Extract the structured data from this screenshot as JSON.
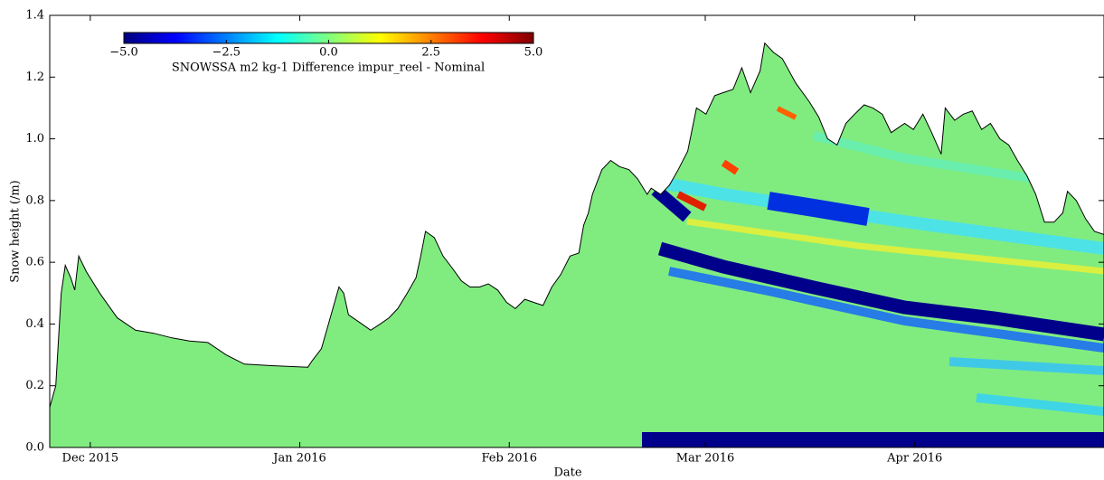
{
  "chart_data": {
    "type": "area",
    "xlabel": "Date",
    "ylabel": "Snow height (/m)",
    "color": "#80ec80",
    "line_color": "#000000",
    "xlim": [
      0,
      156
    ],
    "xticks": [
      {
        "value": 6,
        "label": "Dec 2015"
      },
      {
        "value": 37,
        "label": "Jan 2016"
      },
      {
        "value": 68,
        "label": "Feb 2016"
      },
      {
        "value": 97,
        "label": "Mar 2016"
      },
      {
        "value": 128,
        "label": "Apr 2016"
      }
    ],
    "ylim": [
      0,
      1.4
    ],
    "yticks": [
      {
        "value": 0,
        "label": "0.0"
      },
      0.2,
      0.4,
      0.6,
      0.8,
      {
        "value": 1,
        "label": "1.0"
      },
      1.2,
      1.4
    ],
    "x": [
      0,
      0.9,
      1.7,
      2.3,
      3.1,
      3.7,
      4.3,
      5.4,
      7.4,
      10.0,
      12.7,
      15.4,
      18.1,
      20.7,
      23.4,
      26.1,
      28.8,
      32.8,
      38.2,
      38.8,
      40.2,
      41.5,
      42.8,
      43.5,
      44.2,
      46.2,
      47.5,
      48.9,
      50.2,
      51.5,
      52.9,
      54.2,
      54.9,
      55.6,
      56.9,
      58.2,
      59.6,
      60.9,
      62.2,
      63.6,
      64.9,
      66.3,
      67.6,
      68.9,
      70.3,
      71.6,
      73.0,
      74.3,
      75.6,
      77.0,
      78.3,
      79.0,
      79.7,
      80.3,
      81.7,
      83.0,
      84.3,
      85.7,
      87.0,
      88.4,
      89.0,
      90.4,
      91.7,
      93.0,
      94.4,
      95.7,
      97.1,
      98.4,
      99.7,
      101.1,
      102.4,
      103.7,
      105.1,
      105.8,
      107.1,
      108.4,
      110.4,
      112.4,
      113.8,
      115.1,
      116.5,
      117.8,
      119.1,
      120.5,
      121.8,
      123.2,
      124.5,
      126.5,
      127.8,
      129.2,
      130.5,
      131.9,
      132.5,
      133.9,
      135.2,
      136.5,
      137.9,
      139.2,
      140.6,
      141.9,
      143.2,
      144.6,
      145.9,
      147.2,
      148.6,
      149.9,
      150.6,
      151.9,
      153.3,
      154.6,
      156
    ],
    "values": [
      0.13,
      0.2,
      0.5,
      0.59,
      0.55,
      0.51,
      0.62,
      0.57,
      0.5,
      0.42,
      0.38,
      0.37,
      0.355,
      0.345,
      0.34,
      0.3,
      0.27,
      0.265,
      0.26,
      0.28,
      0.32,
      0.42,
      0.52,
      0.5,
      0.43,
      0.4,
      0.38,
      0.4,
      0.42,
      0.45,
      0.5,
      0.55,
      0.62,
      0.7,
      0.68,
      0.62,
      0.58,
      0.54,
      0.52,
      0.52,
      0.53,
      0.51,
      0.47,
      0.45,
      0.48,
      0.47,
      0.46,
      0.52,
      0.56,
      0.62,
      0.63,
      0.72,
      0.76,
      0.82,
      0.9,
      0.93,
      0.91,
      0.9,
      0.87,
      0.82,
      0.84,
      0.82,
      0.85,
      0.9,
      0.96,
      1.1,
      1.08,
      1.14,
      1.15,
      1.16,
      1.23,
      1.15,
      1.22,
      1.31,
      1.28,
      1.26,
      1.18,
      1.12,
      1.07,
      1.0,
      0.98,
      1.05,
      1.08,
      1.11,
      1.1,
      1.08,
      1.02,
      1.05,
      1.03,
      1.08,
      1.02,
      0.95,
      1.1,
      1.06,
      1.08,
      1.09,
      1.03,
      1.05,
      1.0,
      0.98,
      0.93,
      0.88,
      0.82,
      0.73,
      0.73,
      0.76,
      0.83,
      0.8,
      0.74,
      0.7,
      0.69
    ],
    "colorbar": {
      "label": "SNOWSSA m2 kg-1 Difference impur_reel - Nominal",
      "lim": [
        -5,
        5
      ],
      "ticks": [
        {
          "value": -5,
          "label": "−5.0"
        },
        {
          "value": -2.5,
          "label": "−2.5"
        },
        {
          "value": 0,
          "label": "0.0"
        },
        {
          "value": 2.5,
          "label": "2.5"
        },
        {
          "value": 5,
          "label": "5.0"
        }
      ]
    }
  }
}
